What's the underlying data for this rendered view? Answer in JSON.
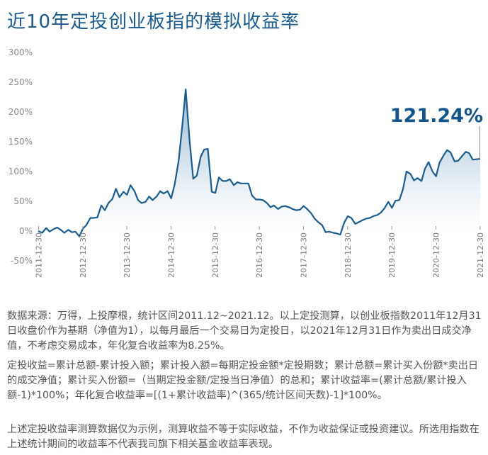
{
  "title": "近10年定投创业板指的模拟收益率",
  "chart_data": {
    "type": "area",
    "title": "近10年定投创业板指的模拟收益率",
    "y_ticks": [
      "300%",
      "250%",
      "200%",
      "150%",
      "100%",
      "50%",
      "0%",
      "-50%"
    ],
    "ylim": [
      -50,
      300
    ],
    "x_ticks": [
      "2011-12-30",
      "2012-12-30",
      "2013-12-30",
      "2014-12-30",
      "2015-12-30",
      "2016-12-30",
      "2017-12-30",
      "2018-12-30",
      "2019-12-30",
      "2020-12-30",
      "2021-12-30"
    ],
    "xlim": [
      2011.99,
      2022.0
    ],
    "end_label": "121.24%",
    "grid": false,
    "series": [
      {
        "values": [
          [
            2011.99,
            0
          ],
          [
            2012.08,
            -3
          ],
          [
            2012.17,
            5
          ],
          [
            2012.25,
            -1
          ],
          [
            2012.33,
            3
          ],
          [
            2012.42,
            6
          ],
          [
            2012.5,
            2
          ],
          [
            2012.58,
            -3
          ],
          [
            2012.67,
            2
          ],
          [
            2012.75,
            -2
          ],
          [
            2012.83,
            -1
          ],
          [
            2012.92,
            -9
          ],
          [
            2013.0,
            4
          ],
          [
            2013.08,
            10
          ],
          [
            2013.17,
            22
          ],
          [
            2013.25,
            22
          ],
          [
            2013.33,
            23
          ],
          [
            2013.42,
            43
          ],
          [
            2013.5,
            35
          ],
          [
            2013.58,
            47
          ],
          [
            2013.67,
            54
          ],
          [
            2013.75,
            71
          ],
          [
            2013.83,
            57
          ],
          [
            2013.92,
            66
          ],
          [
            2014.0,
            61
          ],
          [
            2014.08,
            77
          ],
          [
            2014.17,
            67
          ],
          [
            2014.25,
            52
          ],
          [
            2014.33,
            47
          ],
          [
            2014.42,
            49
          ],
          [
            2014.5,
            58
          ],
          [
            2014.58,
            52
          ],
          [
            2014.67,
            58
          ],
          [
            2014.75,
            67
          ],
          [
            2014.83,
            63
          ],
          [
            2014.92,
            67
          ],
          [
            2015.0,
            55
          ],
          [
            2015.08,
            78
          ],
          [
            2015.17,
            118
          ],
          [
            2015.25,
            175
          ],
          [
            2015.33,
            238
          ],
          [
            2015.42,
            150
          ],
          [
            2015.5,
            88
          ],
          [
            2015.58,
            93
          ],
          [
            2015.67,
            125
          ],
          [
            2015.75,
            137
          ],
          [
            2015.83,
            138
          ],
          [
            2015.92,
            66
          ],
          [
            2016.0,
            64
          ],
          [
            2016.08,
            90
          ],
          [
            2016.17,
            84
          ],
          [
            2016.25,
            84
          ],
          [
            2016.33,
            87
          ],
          [
            2016.42,
            77
          ],
          [
            2016.5,
            82
          ],
          [
            2016.58,
            80
          ],
          [
            2016.67,
            80
          ],
          [
            2016.75,
            80
          ],
          [
            2016.83,
            60
          ],
          [
            2016.92,
            53
          ],
          [
            2017.0,
            53
          ],
          [
            2017.08,
            52
          ],
          [
            2017.17,
            47
          ],
          [
            2017.25,
            40
          ],
          [
            2017.33,
            43
          ],
          [
            2017.42,
            37
          ],
          [
            2017.5,
            41
          ],
          [
            2017.58,
            42
          ],
          [
            2017.67,
            40
          ],
          [
            2017.75,
            37
          ],
          [
            2017.83,
            35
          ],
          [
            2017.92,
            36
          ],
          [
            2018.0,
            42
          ],
          [
            2018.08,
            37
          ],
          [
            2018.17,
            30
          ],
          [
            2018.25,
            21
          ],
          [
            2018.33,
            15
          ],
          [
            2018.42,
            10
          ],
          [
            2018.5,
            -2
          ],
          [
            2018.58,
            -1
          ],
          [
            2018.67,
            -3
          ],
          [
            2018.75,
            -4
          ],
          [
            2018.83,
            -6
          ],
          [
            2018.92,
            14
          ],
          [
            2019.0,
            25
          ],
          [
            2019.08,
            22
          ],
          [
            2019.17,
            12
          ],
          [
            2019.25,
            15
          ],
          [
            2019.33,
            18
          ],
          [
            2019.42,
            21
          ],
          [
            2019.5,
            22
          ],
          [
            2019.58,
            25
          ],
          [
            2019.67,
            27
          ],
          [
            2019.75,
            31
          ],
          [
            2019.83,
            38
          ],
          [
            2019.92,
            49
          ],
          [
            2020.0,
            39
          ],
          [
            2020.08,
            51
          ],
          [
            2020.17,
            52
          ],
          [
            2020.25,
            70
          ],
          [
            2020.33,
            100
          ],
          [
            2020.42,
            96
          ],
          [
            2020.5,
            85
          ],
          [
            2020.58,
            89
          ],
          [
            2020.67,
            84
          ],
          [
            2020.75,
            105
          ],
          [
            2020.83,
            116
          ],
          [
            2020.92,
            100
          ],
          [
            2021.0,
            92
          ],
          [
            2021.08,
            115
          ],
          [
            2021.17,
            127
          ],
          [
            2021.25,
            136
          ],
          [
            2021.33,
            132
          ],
          [
            2021.42,
            117
          ],
          [
            2021.5,
            118
          ],
          [
            2021.58,
            125
          ],
          [
            2021.67,
            133
          ],
          [
            2021.75,
            131
          ],
          [
            2021.83,
            120
          ],
          [
            2022.0,
            121.24
          ]
        ]
      }
    ]
  },
  "notes": {
    "p1": "数据来源：万得，上投摩根，统计区间2011.12~2021.12。以上定投测算，以创业板指数2011年12月31日收盘价作为基期（净值为1），以每月最后一个交易日为定投日，以2021年12月31日作为卖出日成交净值，不考虑交易成本，年化复合收益率为8.25%。",
    "p2": "定投收益=累计总额-累计投入额；累计投入额=每期定投金额*定投期数；累计总额=累计买入份额*卖出日的成交净值；累计买入份额=（当期定投金额/定投当日净值）的总和；累计收益率=(累计总额/累计投入额-1)*100%；年化复合收益率=[(1+累计收益率)^(365/统计区间天数)-1]*100%。",
    "p3": "上述定投收益率测算数据仅为示例，测算收益不等于实际收益，不作为收益保证或投资建议。所选用指数在上述统计期间的收益率不代表我司旗下相关基金收益率表现。"
  }
}
